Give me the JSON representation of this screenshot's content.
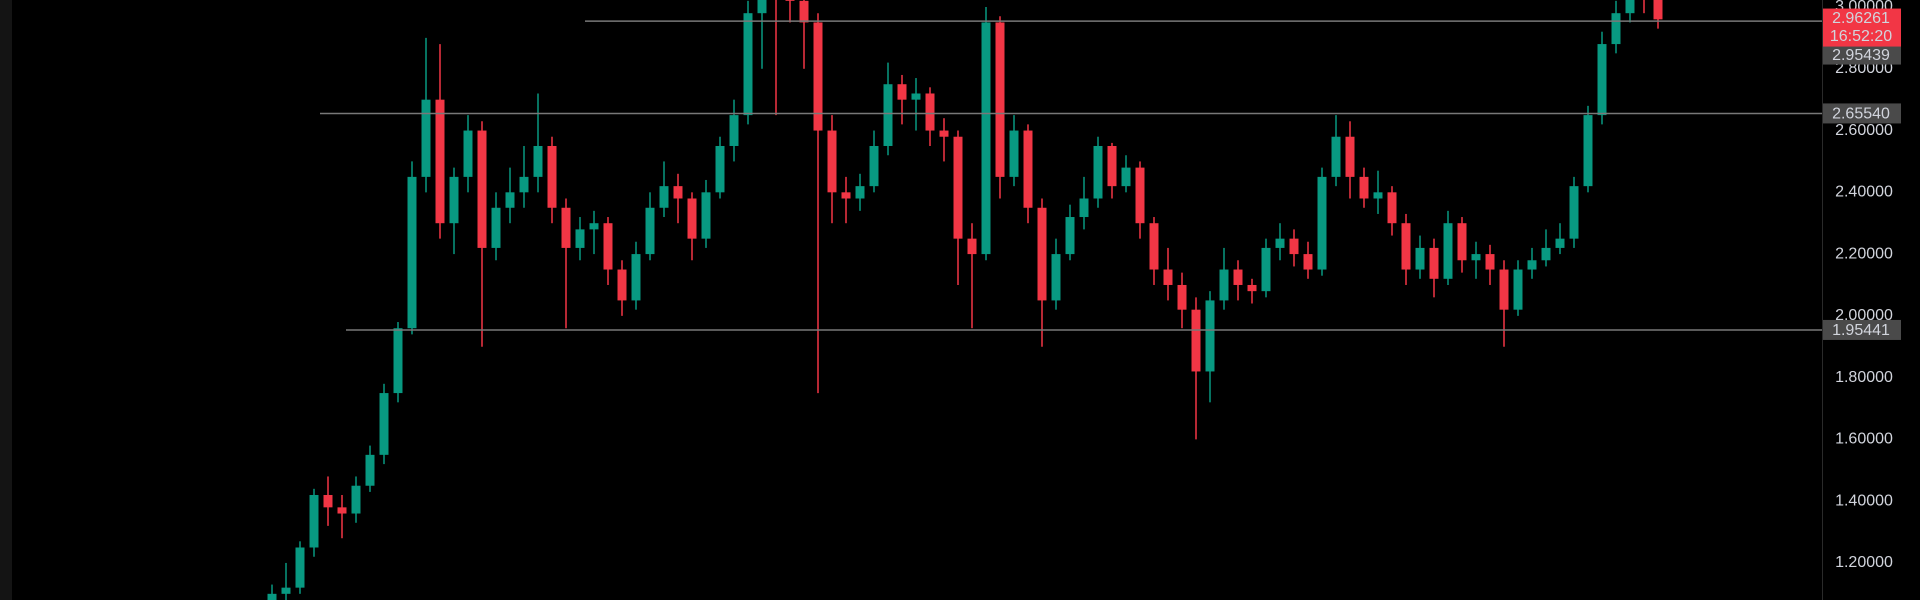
{
  "chart_data": {
    "type": "candlestick",
    "up_color": "#089981",
    "down_color": "#f23645",
    "open": [
      1.08,
      1.1,
      1.12,
      1.25,
      1.42,
      1.38,
      1.36,
      1.45,
      1.55,
      1.75,
      1.96,
      2.45,
      2.7,
      2.3,
      2.45,
      2.6,
      2.22,
      2.35,
      2.4,
      2.45,
      2.55,
      2.35,
      2.22,
      2.28,
      2.3,
      2.15,
      2.05,
      2.2,
      2.35,
      2.42,
      2.38,
      2.25,
      2.4,
      2.55,
      2.65,
      2.98,
      3.05,
      3.04,
      3.02,
      2.95,
      2.6,
      2.4,
      2.38,
      2.42,
      2.55,
      2.75,
      2.7,
      2.72,
      2.6,
      2.58,
      2.25,
      2.2,
      2.95,
      2.45,
      2.6,
      2.35,
      2.05,
      2.2,
      2.32,
      2.38,
      2.55,
      2.42,
      2.48,
      2.3,
      2.15,
      2.1,
      2.02,
      1.82,
      2.05,
      2.15,
      2.1,
      2.08,
      2.22,
      2.25,
      2.2,
      2.15,
      2.45,
      2.58,
      2.45,
      2.38,
      2.4,
      2.3,
      2.15,
      2.22,
      2.12,
      2.3,
      2.18,
      2.2,
      2.15,
      2.02,
      2.15,
      2.18,
      2.22,
      2.25,
      2.42,
      2.65,
      2.88,
      2.98,
      3.05,
      3.03
    ],
    "high": [
      1.13,
      1.2,
      1.27,
      1.44,
      1.48,
      1.42,
      1.48,
      1.58,
      1.78,
      1.98,
      2.5,
      2.9,
      2.88,
      2.48,
      2.65,
      2.63,
      2.4,
      2.48,
      2.55,
      2.72,
      2.58,
      2.38,
      2.32,
      2.34,
      2.32,
      2.18,
      2.24,
      2.4,
      2.5,
      2.46,
      2.4,
      2.44,
      2.58,
      2.7,
      3.02,
      3.08,
      3.08,
      3.07,
      3.06,
      2.98,
      2.65,
      2.45,
      2.46,
      2.6,
      2.82,
      2.78,
      2.77,
      2.74,
      2.64,
      2.6,
      2.3,
      3.0,
      2.97,
      2.65,
      2.62,
      2.38,
      2.25,
      2.36,
      2.45,
      2.58,
      2.56,
      2.52,
      2.5,
      2.32,
      2.22,
      2.14,
      2.06,
      2.08,
      2.22,
      2.18,
      2.12,
      2.25,
      2.3,
      2.28,
      2.24,
      2.48,
      2.65,
      2.63,
      2.48,
      2.47,
      2.42,
      2.33,
      2.26,
      2.25,
      2.34,
      2.32,
      2.24,
      2.23,
      2.18,
      2.18,
      2.22,
      2.28,
      2.3,
      2.45,
      2.68,
      2.92,
      3.02,
      3.1,
      3.08,
      3.06
    ],
    "low": [
      1.07,
      1.08,
      1.1,
      1.22,
      1.32,
      1.28,
      1.33,
      1.43,
      1.52,
      1.72,
      1.94,
      2.4,
      2.25,
      2.2,
      2.4,
      1.9,
      2.18,
      2.3,
      2.35,
      2.4,
      2.3,
      1.96,
      2.18,
      2.2,
      2.1,
      2.0,
      2.02,
      2.18,
      2.32,
      2.3,
      2.18,
      2.22,
      2.38,
      2.5,
      2.62,
      2.8,
      2.65,
      2.95,
      2.8,
      1.75,
      2.3,
      2.3,
      2.34,
      2.4,
      2.52,
      2.62,
      2.6,
      2.55,
      2.5,
      2.1,
      1.96,
      2.18,
      2.38,
      2.42,
      2.3,
      1.9,
      2.02,
      2.18,
      2.28,
      2.35,
      2.38,
      2.4,
      2.25,
      2.1,
      2.05,
      1.96,
      1.6,
      1.72,
      2.02,
      2.05,
      2.04,
      2.06,
      2.18,
      2.16,
      2.12,
      2.13,
      2.42,
      2.38,
      2.35,
      2.33,
      2.26,
      2.1,
      2.12,
      2.06,
      2.1,
      2.14,
      2.12,
      2.1,
      1.9,
      2.0,
      2.12,
      2.16,
      2.2,
      2.22,
      2.4,
      2.62,
      2.85,
      2.95,
      2.98,
      2.93
    ],
    "close": [
      1.1,
      1.12,
      1.25,
      1.42,
      1.38,
      1.36,
      1.45,
      1.55,
      1.75,
      1.96,
      2.45,
      2.7,
      2.3,
      2.45,
      2.6,
      2.22,
      2.35,
      2.4,
      2.45,
      2.55,
      2.35,
      2.22,
      2.28,
      2.3,
      2.15,
      2.05,
      2.2,
      2.35,
      2.42,
      2.38,
      2.25,
      2.4,
      2.55,
      2.65,
      2.98,
      3.05,
      3.04,
      3.02,
      2.95,
      2.6,
      2.4,
      2.38,
      2.42,
      2.55,
      2.75,
      2.7,
      2.72,
      2.6,
      2.58,
      2.25,
      2.2,
      2.95,
      2.45,
      2.6,
      2.35,
      2.05,
      2.2,
      2.32,
      2.38,
      2.55,
      2.42,
      2.48,
      2.3,
      2.15,
      2.1,
      2.02,
      1.82,
      2.05,
      2.15,
      2.1,
      2.08,
      2.22,
      2.25,
      2.2,
      2.15,
      2.45,
      2.58,
      2.45,
      2.38,
      2.4,
      2.3,
      2.15,
      2.22,
      2.12,
      2.3,
      2.18,
      2.2,
      2.15,
      2.02,
      2.15,
      2.18,
      2.22,
      2.25,
      2.42,
      2.65,
      2.88,
      2.98,
      3.05,
      3.03,
      2.96
    ],
    "ylim": [
      1.08,
      3.0227
    ],
    "yticks": [
      {
        "value": 1.2,
        "label": "1.20000"
      },
      {
        "value": 1.4,
        "label": "1.40000"
      },
      {
        "value": 1.6,
        "label": "1.60000"
      },
      {
        "value": 1.8,
        "label": "1.80000"
      },
      {
        "value": 2.0,
        "label": "2.00000"
      },
      {
        "value": 2.2,
        "label": "2.20000"
      },
      {
        "value": 2.4,
        "label": "2.40000"
      },
      {
        "value": 2.6,
        "label": "2.60000"
      },
      {
        "value": 2.8,
        "label": "2.80000"
      },
      {
        "value": 3.0,
        "label": "3.00000"
      }
    ],
    "price_lines": [
      2.95439,
      {
        "value": 2.6554,
        "label": "2.65540"
      },
      1.95441
    ],
    "last_price": 2.96261,
    "countdown": "16:52:20"
  }
}
